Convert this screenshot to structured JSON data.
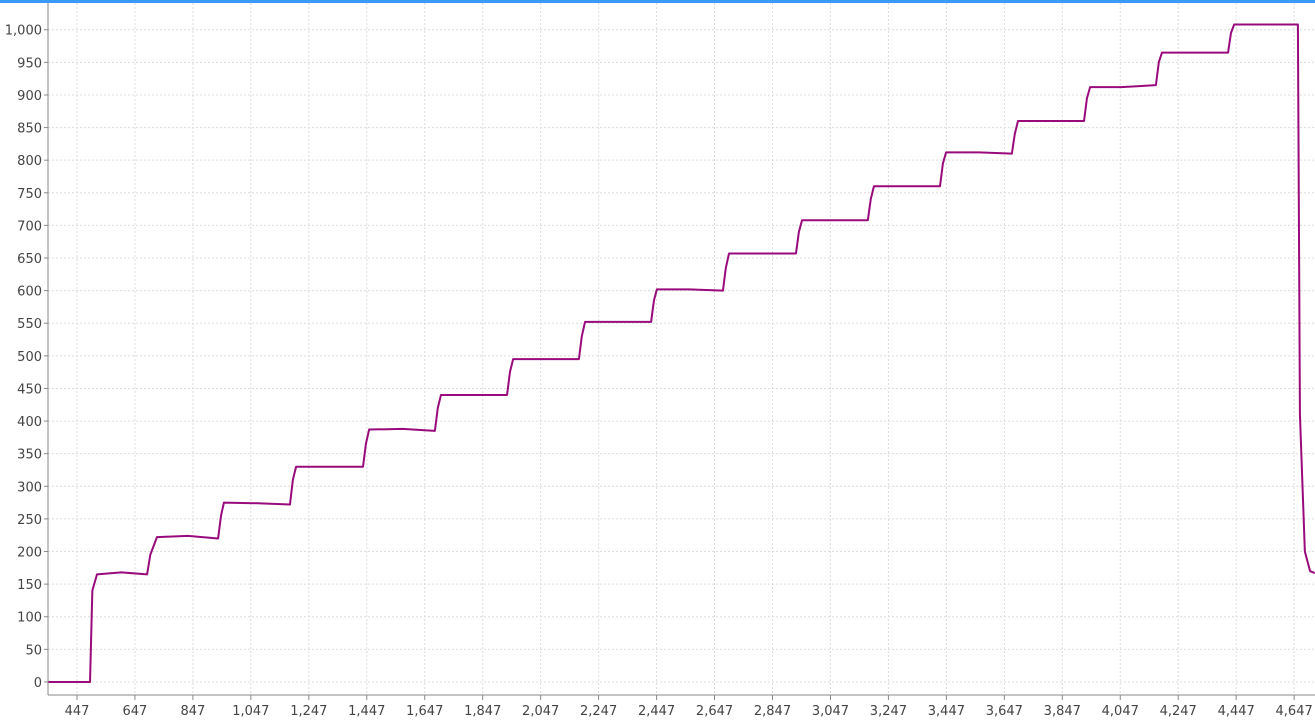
{
  "chart_data": {
    "type": "line",
    "x": [
      347,
      492,
      500,
      516,
      600,
      689,
      700,
      723,
      830,
      934,
      944,
      954,
      1070,
      1182,
      1192,
      1203,
      1320,
      1434,
      1444,
      1455,
      1570,
      1682,
      1692,
      1703,
      1820,
      1931,
      1941,
      1952,
      2070,
      2179,
      2189,
      2200,
      2310,
      2428,
      2438,
      2448,
      2560,
      2676,
      2686,
      2697,
      2810,
      2928,
      2938,
      2949,
      3060,
      3176,
      3186,
      3197,
      3310,
      3425,
      3435,
      3446,
      3560,
      3673,
      3683,
      3694,
      3810,
      3922,
      3932,
      3943,
      4050,
      4170,
      4180,
      4191,
      4300,
      4419,
      4429,
      4440,
      4550,
      4660,
      4667,
      4684,
      4702,
      4718
    ],
    "values": [
      0,
      0,
      140,
      165,
      168,
      165,
      195,
      222,
      224,
      220,
      255,
      275,
      274,
      272,
      310,
      330,
      330,
      330,
      365,
      387,
      388,
      385,
      420,
      440,
      440,
      440,
      475,
      495,
      495,
      495,
      530,
      552,
      552,
      552,
      585,
      602,
      602,
      600,
      635,
      657,
      657,
      657,
      690,
      708,
      708,
      708,
      740,
      760,
      760,
      760,
      795,
      812,
      812,
      810,
      840,
      860,
      860,
      860,
      895,
      912,
      912,
      915,
      950,
      965,
      965,
      965,
      995,
      1008,
      1008,
      1008,
      410,
      200,
      170,
      167
    ],
    "color": "#990a7c",
    "xlim": [
      347,
      4719
    ],
    "ylim": [
      -20,
      1041
    ],
    "xticks": [
      {
        "value": 447,
        "label": "447"
      },
      {
        "value": 647,
        "label": "647"
      },
      {
        "value": 847,
        "label": "847"
      },
      {
        "value": 1047,
        "label": "1,047"
      },
      {
        "value": 1247,
        "label": "1,247"
      },
      {
        "value": 1447,
        "label": "1,447"
      },
      {
        "value": 1647,
        "label": "1,647"
      },
      {
        "value": 1847,
        "label": "1,847"
      },
      {
        "value": 2047,
        "label": "2,047"
      },
      {
        "value": 2247,
        "label": "2,247"
      },
      {
        "value": 2447,
        "label": "2,447"
      },
      {
        "value": 2647,
        "label": "2,647"
      },
      {
        "value": 2847,
        "label": "2,847"
      },
      {
        "value": 3047,
        "label": "3,047"
      },
      {
        "value": 3247,
        "label": "3,247"
      },
      {
        "value": 3447,
        "label": "3,447"
      },
      {
        "value": 3647,
        "label": "3,647"
      },
      {
        "value": 3847,
        "label": "3,847"
      },
      {
        "value": 4047,
        "label": "4,047"
      },
      {
        "value": 4247,
        "label": "4,247"
      },
      {
        "value": 4447,
        "label": "4,447"
      },
      {
        "value": 4647,
        "label": "4,647"
      }
    ],
    "yticks": [
      0,
      50,
      100,
      150,
      200,
      250,
      300,
      350,
      400,
      450,
      500,
      550,
      600,
      650,
      700,
      750,
      800,
      850,
      900,
      950,
      {
        "value": 1000,
        "label": "1,000"
      }
    ],
    "grid": true
  }
}
